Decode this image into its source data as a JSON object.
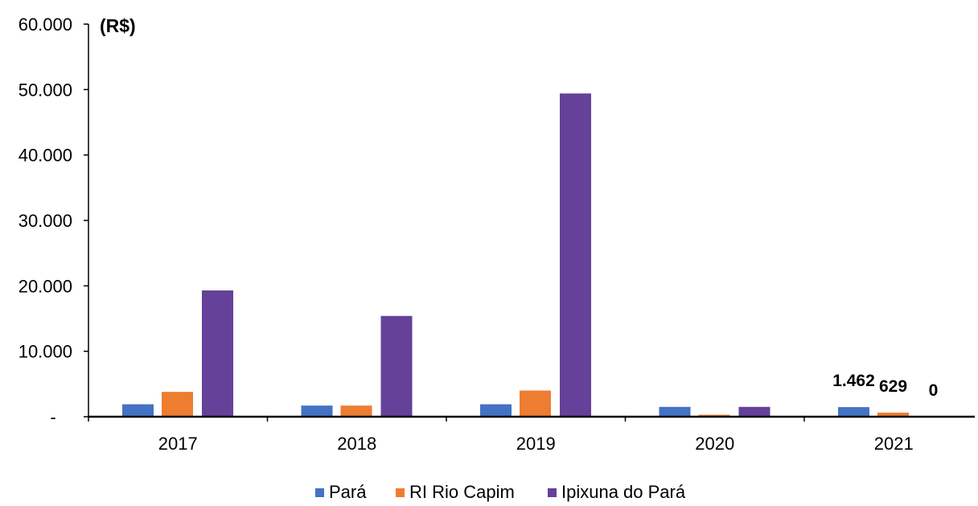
{
  "chart_data": {
    "type": "bar",
    "unit_label": "(R$)",
    "categories": [
      "2017",
      "2018",
      "2019",
      "2020",
      "2021"
    ],
    "series": [
      {
        "name": "Pará",
        "color": "#4472C4",
        "values": [
          1900,
          1700,
          1900,
          1500,
          1462
        ]
      },
      {
        "name": "RI Rio Capim",
        "color": "#ED7D31",
        "values": [
          3800,
          1700,
          4000,
          300,
          629
        ]
      },
      {
        "name": "Ipixuna do Pará",
        "color": "#654199",
        "values": [
          19300,
          15400,
          49400,
          1500,
          0
        ]
      }
    ],
    "y_ticks": [
      {
        "value": 0,
        "label": "-"
      },
      {
        "value": 10000,
        "label": "10.000"
      },
      {
        "value": 20000,
        "label": "20.000"
      },
      {
        "value": 30000,
        "label": "30.000"
      },
      {
        "value": 40000,
        "label": "40.000"
      },
      {
        "value": 50000,
        "label": "50.000"
      },
      {
        "value": 60000,
        "label": "60.000"
      }
    ],
    "ylim": [
      0,
      60000
    ],
    "data_labels": [
      {
        "category": "2021",
        "series": "Pará",
        "text": "1.462"
      },
      {
        "category": "2021",
        "series": "RI Rio Capim",
        "text": "629"
      },
      {
        "category": "2021",
        "series": "Ipixuna do Pará",
        "text": "0"
      }
    ],
    "grid": false,
    "legend_position": "bottom"
  }
}
